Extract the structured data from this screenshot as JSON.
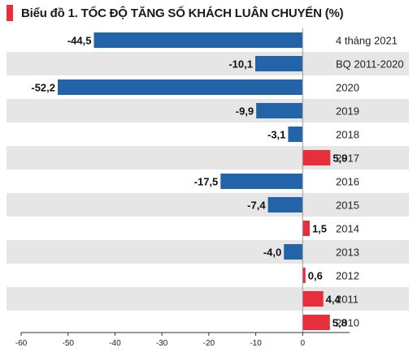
{
  "chart_data": {
    "type": "bar",
    "orientation": "horizontal",
    "title": "Biểu đồ 1. TỐC ĐỘ TĂNG SỐ KHÁCH LUÂN CHUYỂN (%)",
    "categories": [
      "4 tháng 2021",
      "BQ 2011-2020",
      "2020",
      "2019",
      "2018",
      "2017",
      "2016",
      "2015",
      "2014",
      "2013",
      "2012",
      "2011",
      "2010"
    ],
    "values": [
      -44.5,
      -10.1,
      -52.2,
      -9.9,
      -3.1,
      5.9,
      -17.5,
      -7.4,
      1.5,
      -4.0,
      0.6,
      4.4,
      5.8
    ],
    "value_labels": [
      "-44,5",
      "-10,1",
      "-52,2",
      "-9,9",
      "-3,1",
      "5,9",
      "-17,5",
      "-7,4",
      "1,5",
      "-4,0",
      "0,6",
      "4,4",
      "5,8"
    ],
    "xlim": [
      -60,
      10
    ],
    "xticks": [
      "-60",
      "-50",
      "-40",
      "-30",
      "-20",
      "-10",
      "0"
    ],
    "xtick_values": [
      -60,
      -50,
      -40,
      -30,
      -20,
      -10,
      0
    ],
    "grid": false,
    "colors": {
      "negative": "#2363a8",
      "positive": "#e62e3c",
      "row_alt": "#e6e6e6",
      "title_marker": "#e62e3c"
    }
  }
}
